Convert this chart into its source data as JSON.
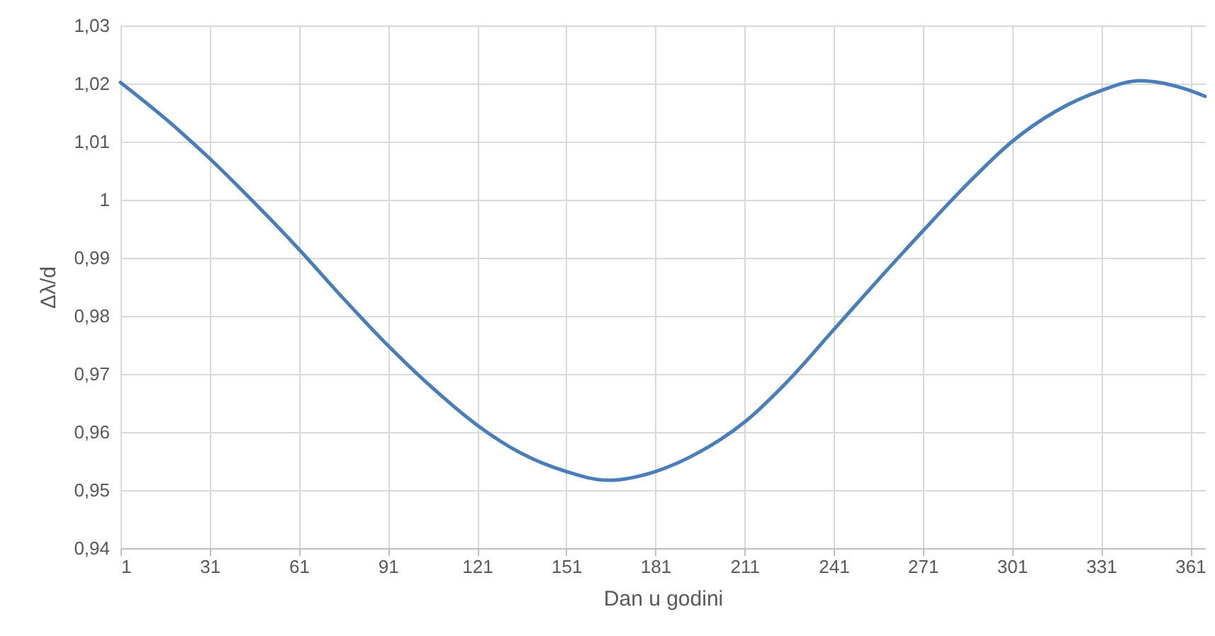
{
  "chart_data": {
    "type": "line",
    "xlabel": "Dan u godini",
    "ylabel": "Δλ/d",
    "x": [
      1,
      16,
      31,
      46,
      61,
      76,
      91,
      106,
      121,
      136,
      151,
      165,
      181,
      196,
      211,
      226,
      241,
      256,
      271,
      286,
      301,
      316,
      331,
      344,
      361,
      366
    ],
    "series": [
      {
        "color": "#4a7ebb",
        "values": [
          1.0202,
          1.014,
          1.0071,
          0.9995,
          0.9915,
          0.983,
          0.9749,
          0.9676,
          0.9612,
          0.9563,
          0.9532,
          0.9517,
          0.9532,
          0.9566,
          0.9617,
          0.969,
          0.9776,
          0.9862,
          0.9946,
          1.0027,
          1.01,
          1.0153,
          1.0188,
          1.0205,
          1.0188,
          1.0178
        ]
      }
    ],
    "xlim": [
      1,
      366
    ],
    "xticks": [
      1,
      31,
      61,
      91,
      121,
      151,
      181,
      211,
      241,
      271,
      301,
      331,
      361
    ],
    "ylim": [
      0.94,
      1.03
    ],
    "yticks": [
      {
        "value": 0.94,
        "label": "0,94"
      },
      {
        "value": 0.95,
        "label": "0,95"
      },
      {
        "value": 0.96,
        "label": "0,96"
      },
      {
        "value": 0.97,
        "label": "0,97"
      },
      {
        "value": 0.98,
        "label": "0,98"
      },
      {
        "value": 0.99,
        "label": "0,99"
      },
      {
        "value": 1,
        "label": "1"
      },
      {
        "value": 1.01,
        "label": "1,01"
      },
      {
        "value": 1.02,
        "label": "1,02"
      },
      {
        "value": 1.03,
        "label": "1,03"
      }
    ],
    "grid": true,
    "marker": "none",
    "line_style": "solid"
  }
}
